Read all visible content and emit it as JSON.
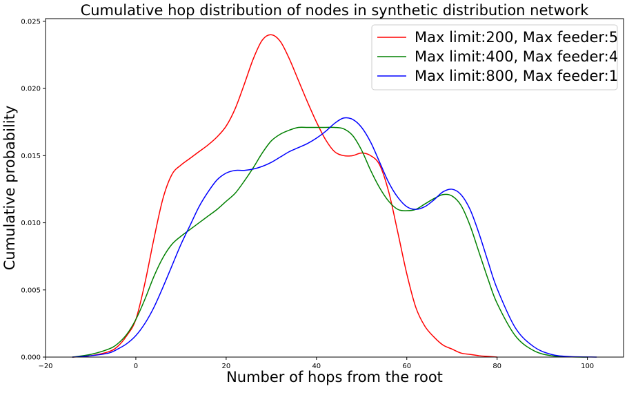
{
  "chart_data": {
    "type": "line",
    "title": "Cumulative hop distribution of nodes in synthetic distribution network",
    "xlabel": "Number of hops from the root",
    "ylabel": "Cumulative probability",
    "xlim": [
      -20,
      108
    ],
    "ylim": [
      0,
      0.0252
    ],
    "xticks": [
      -20,
      0,
      20,
      40,
      60,
      80,
      100
    ],
    "xtick_labels": [
      "−20",
      "0",
      "20",
      "40",
      "60",
      "80",
      "100"
    ],
    "yticks": [
      0.0,
      0.005,
      0.01,
      0.015,
      0.02,
      0.025
    ],
    "ytick_labels": [
      "0.000",
      "0.005",
      "0.010",
      "0.015",
      "0.020",
      "0.025"
    ],
    "grid": false,
    "legend_position": "top-right",
    "series": [
      {
        "name": "Max limit:200, Max feeder:5",
        "color": "#ff0000",
        "x": [
          -14,
          -10,
          -6,
          -4,
          -2,
          0,
          2,
          4,
          6,
          8,
          10,
          12,
          14,
          16,
          18,
          20,
          22,
          24,
          26,
          28,
          30,
          32,
          34,
          36,
          38,
          40,
          42,
          44,
          46,
          48,
          50,
          52,
          54,
          56,
          58,
          60,
          62,
          64,
          66,
          68,
          70,
          72,
          74,
          76,
          78,
          80
        ],
        "y": [
          0.0,
          0.0001,
          0.0004,
          0.0008,
          0.0016,
          0.0028,
          0.0055,
          0.0088,
          0.0118,
          0.0136,
          0.0143,
          0.0148,
          0.0153,
          0.0158,
          0.0164,
          0.0172,
          0.0185,
          0.0203,
          0.0222,
          0.0236,
          0.024,
          0.0235,
          0.0222,
          0.0206,
          0.019,
          0.0175,
          0.0162,
          0.0153,
          0.015,
          0.015,
          0.0152,
          0.015,
          0.0143,
          0.0123,
          0.0093,
          0.0062,
          0.0037,
          0.0023,
          0.0015,
          0.0009,
          0.0006,
          0.0003,
          0.0002,
          0.0001,
          5e-05,
          0.0
        ]
      },
      {
        "name": "Max limit:400, Max feeder:4",
        "color": "#008000",
        "x": [
          -14,
          -10,
          -6,
          -4,
          -2,
          0,
          2,
          4,
          6,
          8,
          10,
          12,
          14,
          16,
          18,
          20,
          22,
          24,
          26,
          28,
          30,
          32,
          34,
          36,
          38,
          40,
          42,
          44,
          46,
          48,
          50,
          52,
          54,
          56,
          58,
          60,
          62,
          64,
          66,
          68,
          70,
          72,
          74,
          76,
          78,
          80,
          84,
          88,
          92,
          96,
          100
        ],
        "y": [
          0.0,
          0.0002,
          0.0006,
          0.001,
          0.0017,
          0.0028,
          0.0043,
          0.006,
          0.0074,
          0.0084,
          0.009,
          0.0095,
          0.01,
          0.0105,
          0.011,
          0.0116,
          0.0122,
          0.0131,
          0.0141,
          0.0152,
          0.0161,
          0.0166,
          0.0169,
          0.0171,
          0.0171,
          0.0171,
          0.0171,
          0.0171,
          0.017,
          0.0165,
          0.0154,
          0.0139,
          0.0126,
          0.0116,
          0.011,
          0.0109,
          0.011,
          0.0114,
          0.0118,
          0.0121,
          0.012,
          0.0113,
          0.0098,
          0.0078,
          0.0058,
          0.004,
          0.0016,
          0.0005,
          0.0001,
          2e-05,
          0.0
        ]
      },
      {
        "name": "Max limit:800, Max feeder:1",
        "color": "#0000ff",
        "x": [
          -14,
          -10,
          -6,
          -4,
          -2,
          0,
          2,
          4,
          6,
          8,
          10,
          12,
          14,
          16,
          18,
          20,
          22,
          24,
          26,
          28,
          30,
          32,
          34,
          36,
          38,
          40,
          42,
          44,
          46,
          48,
          50,
          52,
          54,
          56,
          58,
          60,
          62,
          64,
          66,
          68,
          70,
          72,
          74,
          76,
          78,
          80,
          84,
          88,
          92,
          96,
          102
        ],
        "y": [
          0.0,
          0.0001,
          0.0003,
          0.0006,
          0.001,
          0.0016,
          0.0025,
          0.0037,
          0.0052,
          0.0068,
          0.0084,
          0.0098,
          0.0112,
          0.0123,
          0.0132,
          0.0137,
          0.0139,
          0.0139,
          0.014,
          0.0142,
          0.0145,
          0.0149,
          0.0153,
          0.0156,
          0.0159,
          0.0163,
          0.0168,
          0.0174,
          0.0178,
          0.0177,
          0.0171,
          0.016,
          0.0145,
          0.013,
          0.0119,
          0.0112,
          0.011,
          0.0112,
          0.0117,
          0.0123,
          0.0125,
          0.0121,
          0.011,
          0.0092,
          0.0071,
          0.0051,
          0.0022,
          0.0008,
          0.0002,
          4e-05,
          0.0
        ]
      }
    ]
  }
}
